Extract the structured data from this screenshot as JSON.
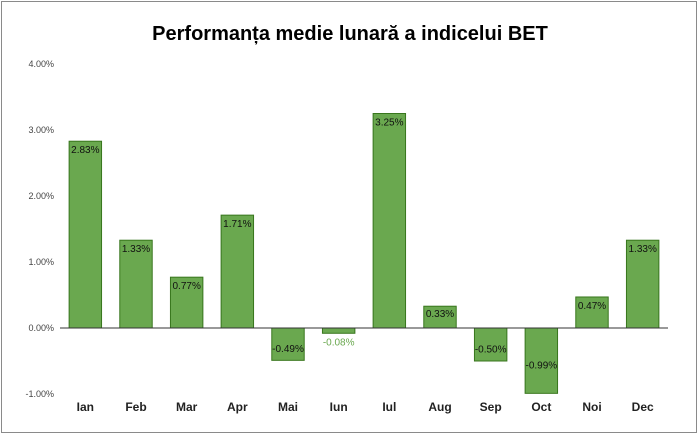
{
  "chart_data": {
    "type": "bar",
    "title": "Performanța medie lunară a indicelui BET",
    "xlabel": "",
    "ylabel": "",
    "categories": [
      "Ian",
      "Feb",
      "Mar",
      "Apr",
      "Mai",
      "Iun",
      "Iul",
      "Aug",
      "Sep",
      "Oct",
      "Noi",
      "Dec"
    ],
    "values": [
      2.83,
      1.33,
      0.77,
      1.71,
      -0.49,
      -0.08,
      3.25,
      0.33,
      -0.5,
      -0.99,
      0.47,
      1.33
    ],
    "value_labels": [
      "2.83%",
      "1.33%",
      "0.77%",
      "1.71%",
      "-0.49%",
      "-0.08%",
      "3.25%",
      "0.33%",
      "-0.50%",
      "-0.99%",
      "0.47%",
      "1.33%"
    ],
    "ylim": [
      -1,
      4
    ],
    "yticks": [
      -1,
      0,
      1,
      2,
      3,
      4
    ],
    "ytick_labels": [
      "-1.00%",
      "0.00%",
      "1.00%",
      "2.00%",
      "3.00%",
      "4.00%"
    ],
    "grid": false,
    "legend": "none",
    "bar_color": "#6aa84f",
    "bar_edge_color": "#38761d"
  }
}
